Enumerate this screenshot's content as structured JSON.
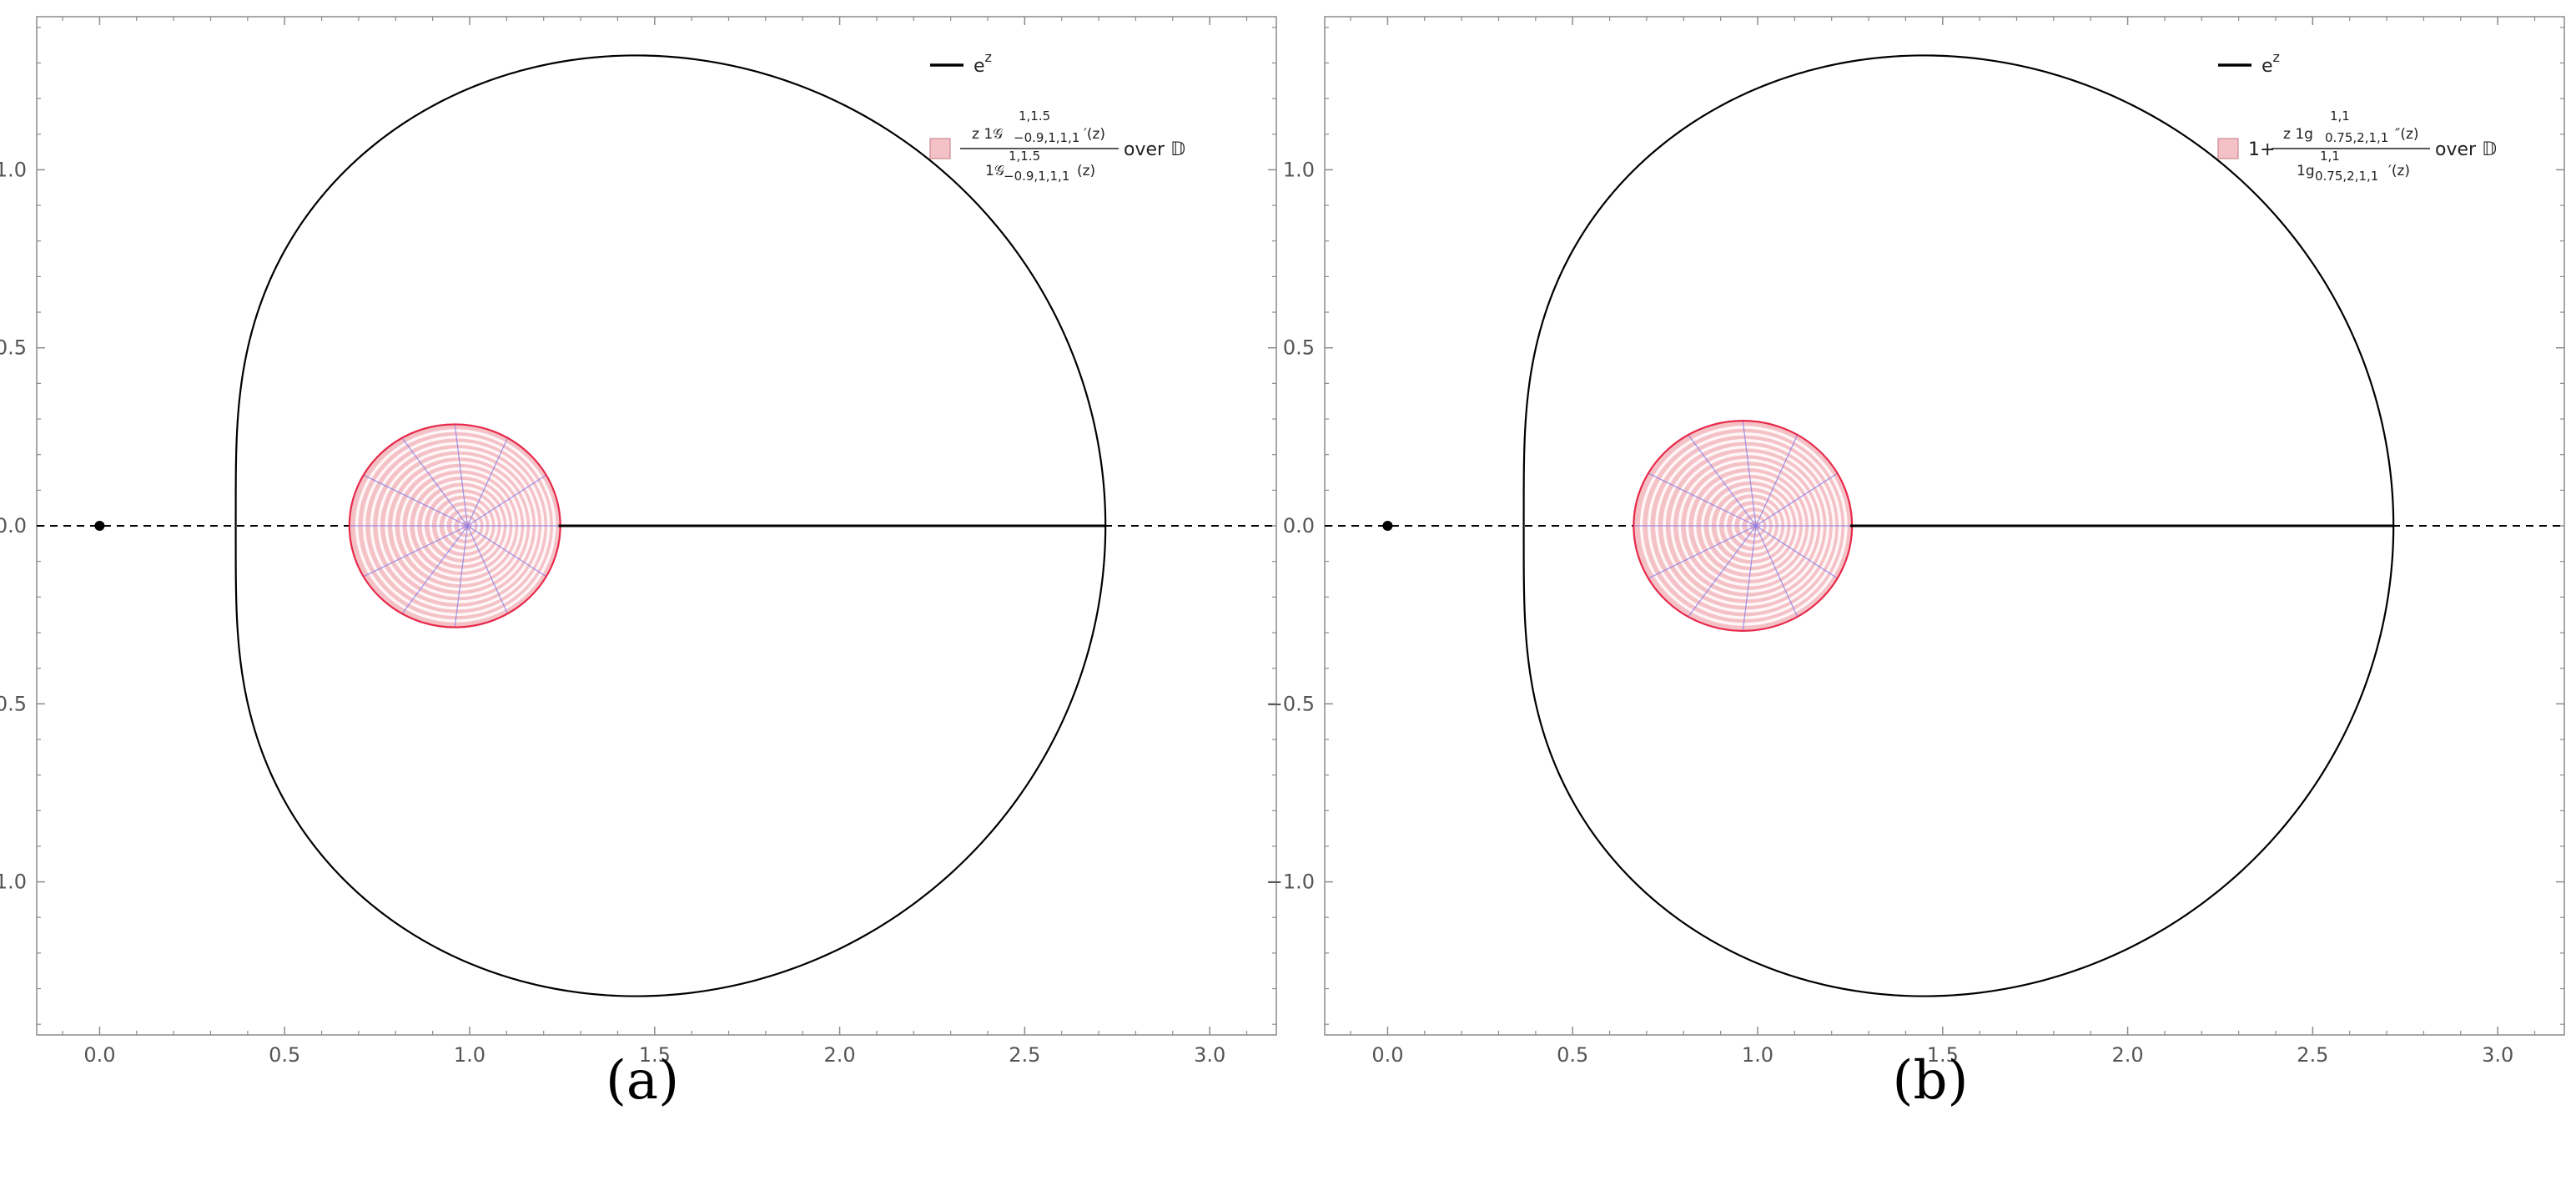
{
  "chart_data": [
    {
      "type": "line",
      "panel": "(a)",
      "caption": "(a)",
      "xlim": [
        -0.17,
        3.18
      ],
      "ylim": [
        -1.43,
        1.43
      ],
      "x_ticks": [
        0.0,
        0.5,
        1.0,
        1.5,
        2.0,
        2.5,
        3.0
      ],
      "x_tick_labels": [
        "0.0",
        "0.5",
        "1.0",
        "1.5",
        "2.0",
        "2.5",
        "3.0"
      ],
      "y_ticks": [
        -1.0,
        -0.5,
        0.0,
        0.5,
        1.0
      ],
      "y_tick_labels": [
        "−1.0",
        "−0.5",
        "0.0",
        "0.5",
        "1.0"
      ],
      "grid": false,
      "legend_position": "top-right",
      "legend": [
        {
          "type": "line",
          "label": "e",
          "label_sup": "z"
        },
        {
          "type": "region",
          "prefix": "",
          "numerator": "z 1𝒢",
          "numerator_sup": "1,1.5",
          "numerator_sub": "−0.9,1,1,1",
          "numerator_suffix": "′(z)",
          "denominator": "1𝒢",
          "denominator_sup": "1,1.5",
          "denominator_sub": "−0.9,1,1,1",
          "denominator_suffix": "(z)",
          "over_text": "over 𝔻"
        }
      ],
      "series": [
        {
          "name": "e^z",
          "kind": "image of unit disk boundary under e^z",
          "color": "#000000",
          "center": [
            0,
            0
          ],
          "radius": 1
        },
        {
          "name": "image region",
          "kind": "disk",
          "center": [
            0.96,
            0.0
          ],
          "radius": 0.285,
          "edge_color": "#e8294a",
          "fill_color": "#f4c2c6",
          "mesh_color": "#8a7be6",
          "right_edge": 1.24
        }
      ],
      "reference_point": {
        "x": 0.0,
        "y": 0.0
      },
      "axis_line_y": 0.0
    },
    {
      "type": "line",
      "panel": "(b)",
      "caption": "(b)",
      "xlim": [
        -0.17,
        3.18
      ],
      "ylim": [
        -1.43,
        1.43
      ],
      "x_ticks": [
        0.0,
        0.5,
        1.0,
        1.5,
        2.0,
        2.5,
        3.0
      ],
      "x_tick_labels": [
        "0.0",
        "0.5",
        "1.0",
        "1.5",
        "2.0",
        "2.5",
        "3.0"
      ],
      "y_ticks": [
        -1.0,
        -0.5,
        0.0,
        0.5,
        1.0
      ],
      "y_tick_labels": [
        "−1.0",
        "−0.5",
        "0.0",
        "0.5",
        "1.0"
      ],
      "grid": false,
      "legend_position": "top-right",
      "legend": [
        {
          "type": "line",
          "label": "e",
          "label_sup": "z"
        },
        {
          "type": "region",
          "prefix": "1+",
          "numerator": "z 1g",
          "numerator_sup": "1,1",
          "numerator_sub": "0.75,2,1,1",
          "numerator_suffix": "″(z)",
          "denominator": "1g",
          "denominator_sup": "1,1",
          "denominator_sub": "0.75,2,1,1",
          "denominator_suffix": "′(z)",
          "over_text": "over 𝔻"
        }
      ],
      "series": [
        {
          "name": "e^z",
          "kind": "image of unit disk boundary under e^z",
          "color": "#000000",
          "center": [
            0,
            0
          ],
          "radius": 1
        },
        {
          "name": "image region",
          "kind": "disk",
          "center": [
            0.96,
            0.0
          ],
          "radius": 0.295,
          "edge_color": "#e8294a",
          "fill_color": "#f4c2c6",
          "mesh_color": "#8a7be6",
          "right_edge": 1.25
        }
      ],
      "reference_point": {
        "x": 0.0,
        "y": 0.0
      },
      "axis_line_y": 0.0
    }
  ]
}
